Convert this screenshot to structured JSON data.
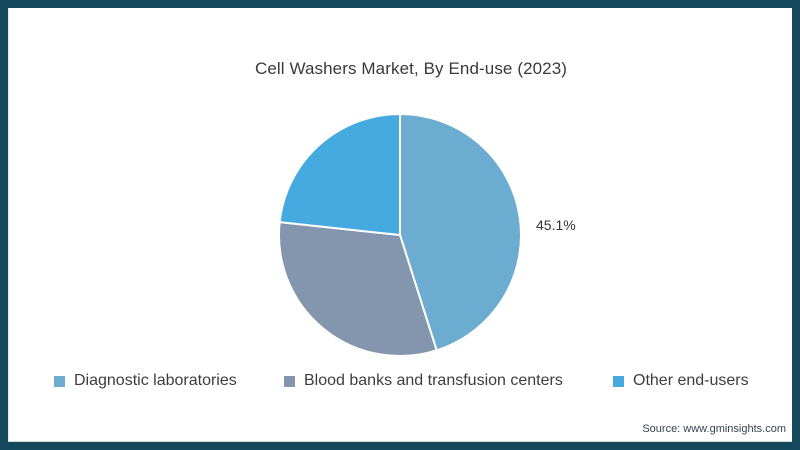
{
  "frame": {
    "border_color": "#14495D",
    "background_color": "#ffffff"
  },
  "title": "Cell Washers Market, By End-use (2023)",
  "chart_data": {
    "type": "pie",
    "title": "Cell Washers Market, By End-use (2023)",
    "start_angle_deg": 0,
    "direction": "clockwise",
    "legend_position": "bottom",
    "slices": [
      {
        "label": "Diagnostic laboratories",
        "value": 45.1,
        "color": "#6CACD1",
        "data_label": "45.1%"
      },
      {
        "label": "Blood banks and transfusion centers",
        "value": 31.6,
        "color": "#8495AE",
        "data_label": ""
      },
      {
        "label": "Other end-users",
        "value": 23.3,
        "color": "#45AAE0",
        "data_label": ""
      }
    ],
    "separator_color": "#ffffff"
  },
  "source": {
    "text": "Source: www.gminsights.com"
  }
}
